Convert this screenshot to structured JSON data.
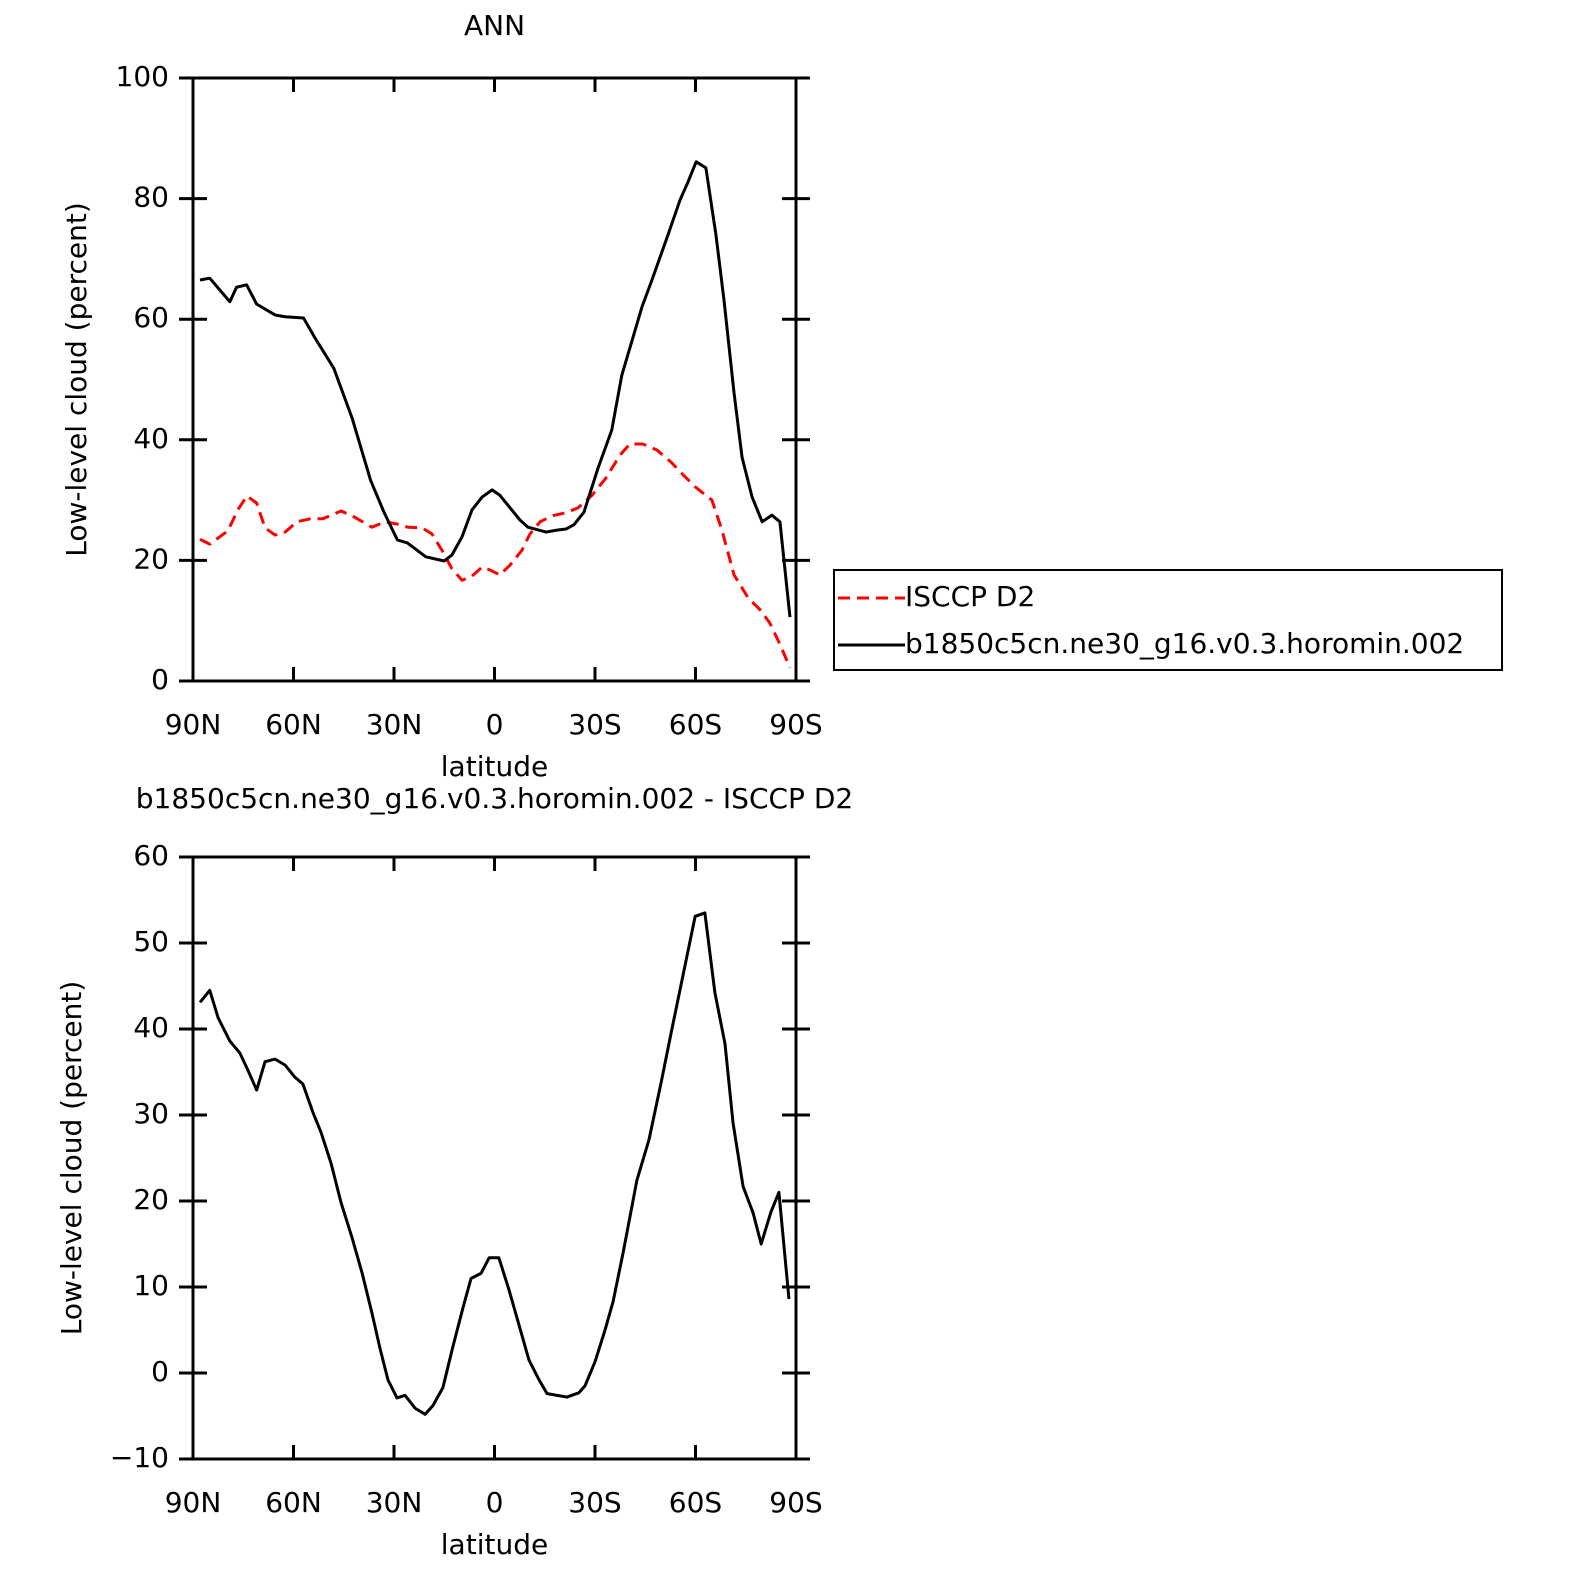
{
  "chart_data": [
    {
      "type": "line",
      "title": "ANN",
      "x_label": "latitude",
      "y_label": "Low-level cloud (percent)",
      "xlim": [
        90,
        -90
      ],
      "xticks": [
        {
          "value": 90,
          "label": "90N"
        },
        {
          "value": 60,
          "label": "60N"
        },
        {
          "value": 30,
          "label": "30N"
        },
        0,
        {
          "value": -30,
          "label": "30S"
        },
        {
          "value": -60,
          "label": "60S"
        },
        {
          "value": -90,
          "label": "90S"
        }
      ],
      "ylim": [
        0,
        100
      ],
      "yticks": [
        0,
        20,
        40,
        60,
        80,
        100
      ],
      "legend": "right",
      "series": [
        {
          "name": "ISCCP D2",
          "color": "#ff0000",
          "dashed": true,
          "x": [
            87.9,
            85,
            79.6,
            76.6,
            73.9,
            71,
            68.5,
            65.5,
            62.5,
            59,
            55,
            51.2,
            45.8,
            42.5,
            36.6,
            32.7,
            28.8,
            25.8,
            21.6,
            18.7,
            15.7,
            12.7,
            9.7,
            6.7,
            3.7,
            1.3,
            -1.6,
            -4.6,
            -8.2,
            -10.6,
            -13.6,
            -17.2,
            -21.3,
            -24.9,
            -29.1,
            -33.3,
            -37.5,
            -40.4,
            -44.3,
            -48.5,
            -52.7,
            -56.3,
            -59.9,
            -64.9,
            -67.9,
            -71.5,
            -75.7,
            -79.3,
            -82.2,
            -85.2,
            -88.2
          ],
          "values": [
            23.5,
            22.7,
            24.9,
            28.4,
            30.7,
            29.5,
            25.4,
            24.2,
            24.7,
            26.4,
            26.9,
            26.9,
            28.2,
            27.4,
            25.5,
            26.4,
            26,
            25.5,
            25.4,
            24.4,
            21.7,
            18.6,
            16.7,
            17.4,
            18.9,
            18.4,
            17.6,
            19.2,
            21.7,
            24.4,
            26.4,
            27.4,
            27.9,
            28.7,
            30.8,
            33.7,
            37.5,
            39.3,
            39.3,
            38.3,
            36.3,
            34.2,
            32.2,
            30,
            25,
            17.6,
            13.8,
            11.8,
            9.6,
            6.1,
            2.2
          ]
        },
        {
          "name": "b1850c5cn.ne30_g16.v0.3.horomin.002",
          "color": "#000000",
          "dashed": false,
          "x": [
            87.9,
            85,
            79,
            77,
            74,
            71,
            65.5,
            62.5,
            57,
            53.6,
            48,
            42.5,
            37,
            33,
            29,
            26,
            20.5,
            15,
            12.7,
            9.7,
            6.7,
            3.7,
            0.7,
            -1.6,
            -7.6,
            -10,
            -15.4,
            -18.4,
            -21.3,
            -23.7,
            -26.7,
            -30.9,
            -35,
            -38,
            -44,
            -47,
            -51.8,
            -55.4,
            -57.8,
            -60.2,
            -63.1,
            -66.1,
            -68.5,
            -71.5,
            -73.9,
            -76.9,
            -79.9,
            -82.8,
            -85.2,
            -88.2
          ],
          "values": [
            66.5,
            66.8,
            62.9,
            65.3,
            65.7,
            62.5,
            60.7,
            60.4,
            60.2,
            56.9,
            51.9,
            43.6,
            33.3,
            28,
            23.4,
            22.9,
            20.6,
            19.9,
            20.9,
            23.9,
            28.4,
            30.5,
            31.7,
            30.8,
            26.7,
            25.5,
            24.7,
            25,
            25.2,
            25.9,
            28,
            35.3,
            41.6,
            50.7,
            62,
            66.5,
            74,
            79.8,
            82.8,
            86.1,
            85.1,
            74,
            63.2,
            47.8,
            37.1,
            30.5,
            26.4,
            27.5,
            26.4,
            10.6
          ]
        }
      ]
    },
    {
      "type": "line",
      "title": "b1850c5cn.ne30_g16.v0.3.horomin.002 - ISCCP D2",
      "x_label": "latitude",
      "y_label": "Low-level cloud (percent)",
      "xlim": [
        90,
        -90
      ],
      "xticks": [
        {
          "value": 90,
          "label": "90N"
        },
        {
          "value": 60,
          "label": "60N"
        },
        {
          "value": 30,
          "label": "30N"
        },
        0,
        {
          "value": -30,
          "label": "30S"
        },
        {
          "value": -60,
          "label": "60S"
        },
        {
          "value": -90,
          "label": "90S"
        }
      ],
      "ylim": [
        -10,
        60
      ],
      "yticks": [
        {
          "value": -10,
          "label": "−10"
        },
        0,
        10,
        20,
        30,
        40,
        50,
        60
      ],
      "series": [
        {
          "color": "#000000",
          "dashed": false,
          "x": [
            87.9,
            85,
            82.5,
            79,
            76,
            73.6,
            71,
            68.5,
            65.5,
            62.5,
            59.6,
            57.2,
            54.2,
            51.8,
            48.8,
            45.8,
            42.5,
            39.5,
            36.6,
            34.2,
            31.8,
            29.1,
            26.7,
            23.7,
            20.7,
            18.4,
            15.4,
            12.4,
            9.4,
            7,
            4,
            1.6,
            -1.3,
            -4.3,
            -7.3,
            -10.3,
            -13.3,
            -15.7,
            -18.7,
            -21.6,
            -25.2,
            -27,
            -30,
            -33,
            -35.4,
            -38.4,
            -42.5,
            -46.1,
            -49.7,
            -52.7,
            -56.3,
            -59.9,
            -62.8,
            -65.8,
            -68.8,
            -71.2,
            -74.2,
            -77.2,
            -79.6,
            -82.5,
            -84.9,
            -87.9
          ],
          "values": [
            43.1,
            44.5,
            41.3,
            38.6,
            37.2,
            35.2,
            32.9,
            36.2,
            36.5,
            35.8,
            34.4,
            33.6,
            30.3,
            28,
            24.4,
            19.8,
            15.7,
            11.6,
            7,
            2.9,
            -0.8,
            -2.9,
            -2.6,
            -4.1,
            -4.8,
            -3.8,
            -1.7,
            3.1,
            7.6,
            11,
            11.6,
            13.4,
            13.4,
            9.7,
            5.6,
            1.5,
            -0.8,
            -2.4,
            -2.6,
            -2.8,
            -2.3,
            -1.5,
            1.3,
            5,
            8.3,
            14,
            22.4,
            27.1,
            33.7,
            39.5,
            46.3,
            53.1,
            53.5,
            44.2,
            38.3,
            29.1,
            21.7,
            18.6,
            15,
            18.7,
            21,
            8.6
          ]
        }
      ]
    }
  ]
}
